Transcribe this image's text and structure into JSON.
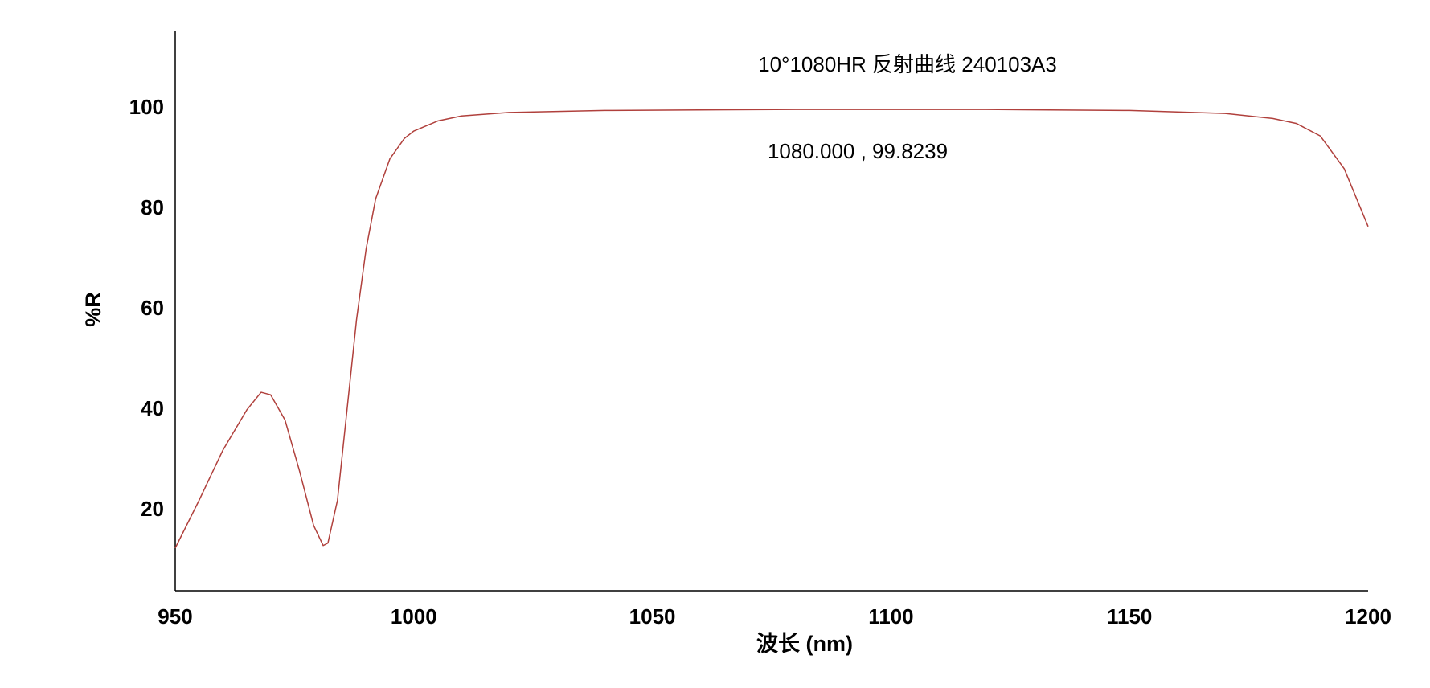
{
  "chart_data": {
    "type": "line",
    "title": "10°1080HR 反射曲线 240103A3",
    "annotation": "1080.000 , 99.8239",
    "x_label": "波长 (nm)",
    "y_label": "%R",
    "x": [
      950,
      955,
      960,
      965,
      968,
      970,
      973,
      976,
      979,
      981,
      982,
      984,
      986,
      988,
      990,
      992,
      995,
      998,
      1000,
      1005,
      1010,
      1020,
      1040,
      1080,
      1120,
      1150,
      1170,
      1180,
      1185,
      1190,
      1195,
      1200
    ],
    "series": [
      {
        "name": "%R",
        "color": "#b0403c",
        "values": [
          12.5,
          22,
          32,
          40,
          43.5,
          43,
          38,
          28,
          17,
          13,
          13.5,
          22,
          40,
          58,
          72,
          82,
          90,
          94,
          95.5,
          97.5,
          98.5,
          99.2,
          99.6,
          99.8,
          99.8,
          99.6,
          99,
          98,
          97,
          94.5,
          88,
          76.5
        ]
      }
    ],
    "xlim": [
      950,
      1200
    ],
    "xticks": [
      950,
      1000,
      1050,
      1100,
      1150,
      1200
    ],
    "ylim": [
      4,
      115.5
    ],
    "yticks": [
      20,
      40,
      60,
      80,
      100
    ],
    "grid": false
  }
}
